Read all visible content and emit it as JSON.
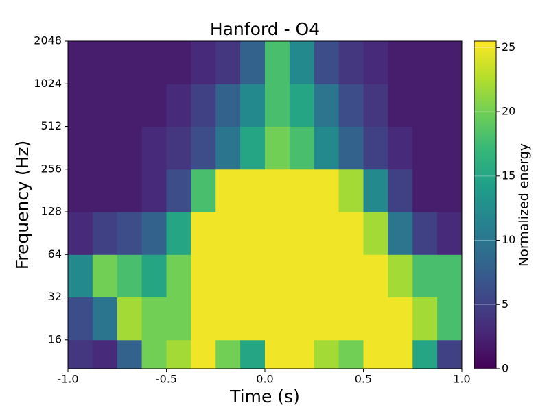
{
  "chart_data": {
    "type": "heatmap",
    "title": "Hanford - O4",
    "xlabel": "Time (s)",
    "ylabel": "Frequency (Hz)",
    "xlim": [
      -1,
      1
    ],
    "xticks": [
      {
        "value": -1,
        "label": "-1.0"
      },
      -0.5,
      {
        "value": 0,
        "label": "0.0"
      },
      0.5,
      {
        "value": 1,
        "label": "1.0"
      }
    ],
    "ylim": [
      10,
      2048
    ],
    "yscale": "log",
    "yticks": [
      16,
      32,
      64,
      128,
      256,
      512,
      1024,
      2048
    ],
    "x_bins": [
      -1,
      -0.875,
      -0.75,
      -0.625,
      -0.5,
      -0.375,
      -0.25,
      -0.125,
      0,
      0.125,
      0.25,
      0.375,
      0.5,
      0.625,
      0.75,
      0.875,
      1
    ],
    "y_bins": [
      10,
      16,
      32,
      64,
      128,
      256,
      512,
      1024,
      2048
    ],
    "z": [
      [
        4,
        3,
        8,
        20,
        22,
        25,
        20,
        15,
        25,
        25,
        22,
        20,
        25,
        25,
        15,
        5
      ],
      [
        6,
        10,
        22,
        20,
        20,
        25,
        25,
        25,
        25,
        25,
        25,
        25,
        25,
        25,
        22,
        18
      ],
      [
        12,
        20,
        18,
        15,
        20,
        25,
        25,
        25,
        25,
        25,
        25,
        25,
        25,
        22,
        18,
        18
      ],
      [
        3,
        5,
        6,
        8,
        15,
        25,
        25,
        25,
        25,
        25,
        25,
        25,
        22,
        10,
        5,
        3
      ],
      [
        2,
        2,
        2,
        3,
        6,
        18,
        25,
        25,
        25,
        25,
        25,
        22,
        12,
        5,
        2,
        2
      ],
      [
        2,
        2,
        2,
        3,
        4,
        6,
        10,
        15,
        20,
        18,
        12,
        8,
        5,
        3,
        2,
        2
      ],
      [
        2,
        2,
        2,
        2,
        3,
        5,
        8,
        12,
        18,
        15,
        10,
        6,
        4,
        2,
        2,
        2
      ],
      [
        2,
        2,
        2,
        2,
        2,
        3,
        4,
        8,
        18,
        12,
        6,
        4,
        3,
        2,
        2,
        2
      ]
    ],
    "colormap": "viridis",
    "clim": [
      0,
      25.5
    ],
    "colorbar_ticks": [
      0,
      5,
      10,
      15,
      20,
      25
    ],
    "colorbar_label": "Normalized energy"
  }
}
